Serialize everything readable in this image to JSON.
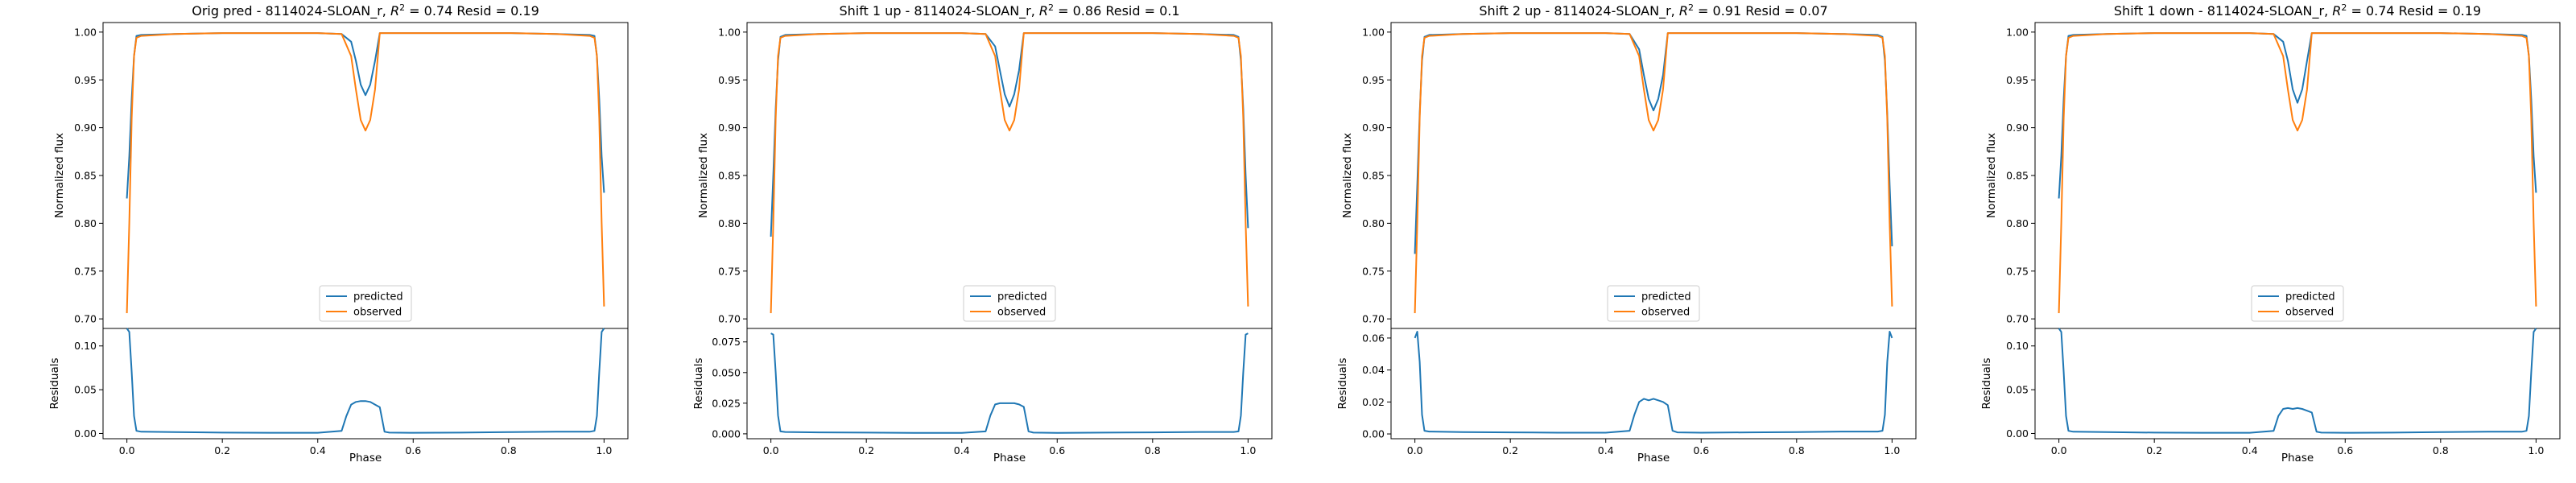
{
  "colors": {
    "predicted": "#1f77b4",
    "observed": "#ff7f0e"
  },
  "chart_data": [
    {
      "type": "line",
      "title_prefix": "Orig pred - 8114024-SLOAN_r, ",
      "r2": "0.74",
      "resid": "0.19",
      "xlabel": "Phase",
      "ylabel_top": "Normalized flux",
      "ylabel_bottom": "Residuals",
      "xlim": [
        -0.05,
        1.05
      ],
      "ylim_top": [
        0.69,
        1.01
      ],
      "ylim_bottom": [
        -0.006,
        0.12
      ],
      "x_ticks": [
        "0.0",
        "0.2",
        "0.4",
        "0.6",
        "0.8",
        "1.0"
      ],
      "y_ticks_top": [
        "0.70",
        "0.75",
        "0.80",
        "0.85",
        "0.90",
        "0.95",
        "1.00"
      ],
      "y_ticks_bottom": [
        "0.00",
        "0.05",
        "0.10"
      ],
      "legend": {
        "location": "lower center",
        "entries": [
          "predicted",
          "observed"
        ]
      },
      "series": [
        {
          "name": "predicted",
          "x": [
            0.0,
            0.005,
            0.01,
            0.015,
            0.02,
            0.03,
            0.1,
            0.2,
            0.3,
            0.4,
            0.45,
            0.47,
            0.48,
            0.49,
            0.5,
            0.51,
            0.52,
            0.53,
            0.55,
            0.6,
            0.7,
            0.8,
            0.9,
            0.97,
            0.98,
            0.985,
            0.99,
            0.995,
            1.0
          ],
          "y": [
            0.826,
            0.87,
            0.93,
            0.975,
            0.996,
            0.997,
            0.998,
            0.999,
            0.999,
            0.999,
            0.998,
            0.99,
            0.97,
            0.945,
            0.934,
            0.945,
            0.97,
            0.999,
            0.999,
            0.999,
            0.999,
            0.999,
            0.998,
            0.997,
            0.996,
            0.975,
            0.93,
            0.87,
            0.832
          ]
        },
        {
          "name": "observed",
          "x": [
            0.0,
            0.005,
            0.01,
            0.015,
            0.02,
            0.03,
            0.1,
            0.2,
            0.3,
            0.4,
            0.45,
            0.47,
            0.48,
            0.49,
            0.5,
            0.51,
            0.52,
            0.53,
            0.55,
            0.6,
            0.7,
            0.8,
            0.9,
            0.97,
            0.98,
            0.985,
            0.99,
            0.995,
            1.0
          ],
          "y": [
            0.706,
            0.8,
            0.91,
            0.975,
            0.994,
            0.996,
            0.998,
            0.999,
            0.999,
            0.999,
            0.998,
            0.975,
            0.94,
            0.908,
            0.897,
            0.908,
            0.94,
            0.999,
            0.999,
            0.999,
            0.999,
            0.999,
            0.998,
            0.996,
            0.994,
            0.975,
            0.91,
            0.8,
            0.713
          ]
        },
        {
          "name": "residuals",
          "x": [
            0.0,
            0.005,
            0.01,
            0.015,
            0.02,
            0.03,
            0.1,
            0.2,
            0.3,
            0.4,
            0.45,
            0.46,
            0.47,
            0.48,
            0.49,
            0.5,
            0.51,
            0.52,
            0.53,
            0.54,
            0.55,
            0.6,
            0.7,
            0.8,
            0.9,
            0.97,
            0.98,
            0.985,
            0.99,
            0.995,
            1.0
          ],
          "y": [
            0.12,
            0.116,
            0.07,
            0.02,
            0.003,
            0.002,
            0.0015,
            0.001,
            0.0008,
            0.0008,
            0.003,
            0.02,
            0.033,
            0.036,
            0.037,
            0.037,
            0.036,
            0.033,
            0.03,
            0.002,
            0.001,
            0.0008,
            0.001,
            0.0015,
            0.002,
            0.002,
            0.003,
            0.02,
            0.07,
            0.116,
            0.12
          ]
        }
      ]
    },
    {
      "type": "line",
      "title_prefix": "Shift 1 up - 8114024-SLOAN_r, ",
      "r2": "0.86",
      "resid": "0.1",
      "xlabel": "Phase",
      "ylabel_top": "Normalized flux",
      "ylabel_bottom": "Residuals",
      "xlim": [
        -0.05,
        1.05
      ],
      "ylim_top": [
        0.69,
        1.01
      ],
      "ylim_bottom": [
        -0.004,
        0.086
      ],
      "x_ticks": [
        "0.0",
        "0.2",
        "0.4",
        "0.6",
        "0.8",
        "1.0"
      ],
      "y_ticks_top": [
        "0.70",
        "0.75",
        "0.80",
        "0.85",
        "0.90",
        "0.95",
        "1.00"
      ],
      "y_ticks_bottom": [
        "0.000",
        "0.025",
        "0.050",
        "0.075"
      ],
      "legend": {
        "location": "lower center",
        "entries": [
          "predicted",
          "observed"
        ]
      },
      "series": [
        {
          "name": "predicted",
          "x": [
            0.0,
            0.005,
            0.01,
            0.015,
            0.02,
            0.03,
            0.1,
            0.2,
            0.3,
            0.4,
            0.45,
            0.47,
            0.48,
            0.49,
            0.5,
            0.51,
            0.52,
            0.53,
            0.55,
            0.6,
            0.7,
            0.8,
            0.9,
            0.97,
            0.98,
            0.985,
            0.99,
            0.995,
            1.0
          ],
          "y": [
            0.786,
            0.85,
            0.92,
            0.97,
            0.995,
            0.997,
            0.998,
            0.999,
            0.999,
            0.999,
            0.998,
            0.985,
            0.96,
            0.935,
            0.922,
            0.935,
            0.96,
            0.999,
            0.999,
            0.999,
            0.999,
            0.999,
            0.998,
            0.997,
            0.995,
            0.97,
            0.92,
            0.85,
            0.795
          ]
        },
        {
          "name": "observed",
          "x": [
            0.0,
            0.005,
            0.01,
            0.015,
            0.02,
            0.03,
            0.1,
            0.2,
            0.3,
            0.4,
            0.45,
            0.47,
            0.48,
            0.49,
            0.5,
            0.51,
            0.52,
            0.53,
            0.55,
            0.6,
            0.7,
            0.8,
            0.9,
            0.97,
            0.98,
            0.985,
            0.99,
            0.995,
            1.0
          ],
          "y": [
            0.706,
            0.8,
            0.91,
            0.975,
            0.994,
            0.996,
            0.998,
            0.999,
            0.999,
            0.999,
            0.998,
            0.975,
            0.94,
            0.908,
            0.897,
            0.908,
            0.94,
            0.999,
            0.999,
            0.999,
            0.999,
            0.999,
            0.998,
            0.996,
            0.994,
            0.975,
            0.91,
            0.8,
            0.713
          ]
        },
        {
          "name": "residuals",
          "x": [
            0.0,
            0.005,
            0.01,
            0.015,
            0.02,
            0.03,
            0.1,
            0.2,
            0.3,
            0.4,
            0.45,
            0.46,
            0.47,
            0.48,
            0.49,
            0.5,
            0.51,
            0.52,
            0.53,
            0.54,
            0.55,
            0.6,
            0.7,
            0.8,
            0.9,
            0.97,
            0.98,
            0.985,
            0.99,
            0.995,
            1.0
          ],
          "y": [
            0.082,
            0.081,
            0.05,
            0.015,
            0.002,
            0.0015,
            0.0012,
            0.001,
            0.0008,
            0.0008,
            0.002,
            0.015,
            0.024,
            0.025,
            0.025,
            0.025,
            0.025,
            0.024,
            0.022,
            0.002,
            0.001,
            0.0008,
            0.001,
            0.0012,
            0.0015,
            0.0015,
            0.002,
            0.015,
            0.05,
            0.081,
            0.082
          ]
        }
      ]
    },
    {
      "type": "line",
      "title_prefix": "Shift 2 up - 8114024-SLOAN_r, ",
      "r2": "0.91",
      "resid": "0.07",
      "xlabel": "Phase",
      "ylabel_top": "Normalized flux",
      "ylabel_bottom": "Residuals",
      "xlim": [
        -0.05,
        1.05
      ],
      "ylim_top": [
        0.69,
        1.01
      ],
      "ylim_bottom": [
        -0.003,
        0.066
      ],
      "x_ticks": [
        "0.0",
        "0.2",
        "0.4",
        "0.6",
        "0.8",
        "1.0"
      ],
      "y_ticks_top": [
        "0.70",
        "0.75",
        "0.80",
        "0.85",
        "0.90",
        "0.95",
        "1.00"
      ],
      "y_ticks_bottom": [
        "0.00",
        "0.02",
        "0.04",
        "0.06"
      ],
      "legend": {
        "location": "lower center",
        "entries": [
          "predicted",
          "observed"
        ]
      },
      "series": [
        {
          "name": "predicted",
          "x": [
            0.0,
            0.005,
            0.01,
            0.015,
            0.02,
            0.03,
            0.1,
            0.2,
            0.3,
            0.4,
            0.45,
            0.47,
            0.48,
            0.49,
            0.5,
            0.51,
            0.52,
            0.53,
            0.55,
            0.6,
            0.7,
            0.8,
            0.9,
            0.97,
            0.98,
            0.985,
            0.99,
            0.995,
            1.0
          ],
          "y": [
            0.768,
            0.84,
            0.915,
            0.97,
            0.995,
            0.997,
            0.998,
            0.999,
            0.999,
            0.999,
            0.998,
            0.982,
            0.955,
            0.93,
            0.918,
            0.93,
            0.955,
            0.999,
            0.999,
            0.999,
            0.999,
            0.999,
            0.998,
            0.997,
            0.995,
            0.97,
            0.915,
            0.84,
            0.776
          ]
        },
        {
          "name": "observed",
          "x": [
            0.0,
            0.005,
            0.01,
            0.015,
            0.02,
            0.03,
            0.1,
            0.2,
            0.3,
            0.4,
            0.45,
            0.47,
            0.48,
            0.49,
            0.5,
            0.51,
            0.52,
            0.53,
            0.55,
            0.6,
            0.7,
            0.8,
            0.9,
            0.97,
            0.98,
            0.985,
            0.99,
            0.995,
            1.0
          ],
          "y": [
            0.706,
            0.8,
            0.91,
            0.975,
            0.994,
            0.996,
            0.998,
            0.999,
            0.999,
            0.999,
            0.998,
            0.975,
            0.94,
            0.908,
            0.897,
            0.908,
            0.94,
            0.999,
            0.999,
            0.999,
            0.999,
            0.999,
            0.998,
            0.996,
            0.994,
            0.975,
            0.91,
            0.8,
            0.713
          ]
        },
        {
          "name": "residuals",
          "x": [
            0.0,
            0.005,
            0.01,
            0.015,
            0.02,
            0.03,
            0.1,
            0.2,
            0.3,
            0.4,
            0.45,
            0.46,
            0.47,
            0.48,
            0.49,
            0.5,
            0.51,
            0.52,
            0.53,
            0.54,
            0.55,
            0.6,
            0.7,
            0.8,
            0.9,
            0.97,
            0.98,
            0.985,
            0.99,
            0.995,
            1.0
          ],
          "y": [
            0.06,
            0.064,
            0.045,
            0.012,
            0.002,
            0.0015,
            0.0012,
            0.001,
            0.0008,
            0.0008,
            0.002,
            0.012,
            0.02,
            0.022,
            0.021,
            0.022,
            0.021,
            0.02,
            0.018,
            0.002,
            0.001,
            0.0008,
            0.001,
            0.0012,
            0.0015,
            0.0015,
            0.002,
            0.012,
            0.045,
            0.064,
            0.06
          ]
        }
      ]
    },
    {
      "type": "line",
      "title_prefix": "Shift 1 down - 8114024-SLOAN_r, ",
      "r2": "0.74",
      "resid": "0.19",
      "xlabel": "Phase",
      "ylabel_top": "Normalized flux",
      "ylabel_bottom": "Residuals",
      "xlim": [
        -0.05,
        1.05
      ],
      "ylim_top": [
        0.69,
        1.01
      ],
      "ylim_bottom": [
        -0.006,
        0.12
      ],
      "x_ticks": [
        "0.0",
        "0.2",
        "0.4",
        "0.6",
        "0.8",
        "1.0"
      ],
      "y_ticks_top": [
        "0.70",
        "0.75",
        "0.80",
        "0.85",
        "0.90",
        "0.95",
        "1.00"
      ],
      "y_ticks_bottom": [
        "0.00",
        "0.05",
        "0.10"
      ],
      "legend": {
        "location": "lower center",
        "entries": [
          "predicted",
          "observed"
        ]
      },
      "series": [
        {
          "name": "predicted",
          "x": [
            0.0,
            0.005,
            0.01,
            0.015,
            0.02,
            0.03,
            0.1,
            0.2,
            0.3,
            0.4,
            0.45,
            0.47,
            0.48,
            0.49,
            0.5,
            0.51,
            0.52,
            0.53,
            0.55,
            0.6,
            0.7,
            0.8,
            0.9,
            0.97,
            0.98,
            0.985,
            0.99,
            0.995,
            1.0
          ],
          "y": [
            0.826,
            0.87,
            0.93,
            0.975,
            0.996,
            0.997,
            0.998,
            0.999,
            0.999,
            0.999,
            0.998,
            0.99,
            0.97,
            0.94,
            0.926,
            0.94,
            0.97,
            0.999,
            0.999,
            0.999,
            0.999,
            0.999,
            0.998,
            0.997,
            0.996,
            0.975,
            0.93,
            0.87,
            0.832
          ]
        },
        {
          "name": "observed",
          "x": [
            0.0,
            0.005,
            0.01,
            0.015,
            0.02,
            0.03,
            0.1,
            0.2,
            0.3,
            0.4,
            0.45,
            0.47,
            0.48,
            0.49,
            0.5,
            0.51,
            0.52,
            0.53,
            0.55,
            0.6,
            0.7,
            0.8,
            0.9,
            0.97,
            0.98,
            0.985,
            0.99,
            0.995,
            1.0
          ],
          "y": [
            0.706,
            0.8,
            0.91,
            0.975,
            0.994,
            0.996,
            0.998,
            0.999,
            0.999,
            0.999,
            0.998,
            0.975,
            0.94,
            0.908,
            0.897,
            0.908,
            0.94,
            0.999,
            0.999,
            0.999,
            0.999,
            0.999,
            0.998,
            0.996,
            0.994,
            0.975,
            0.91,
            0.8,
            0.713
          ]
        },
        {
          "name": "residuals",
          "x": [
            0.0,
            0.005,
            0.01,
            0.015,
            0.02,
            0.03,
            0.1,
            0.2,
            0.3,
            0.4,
            0.45,
            0.46,
            0.47,
            0.48,
            0.49,
            0.5,
            0.51,
            0.52,
            0.53,
            0.54,
            0.55,
            0.6,
            0.7,
            0.8,
            0.9,
            0.97,
            0.98,
            0.985,
            0.99,
            0.995,
            1.0
          ],
          "y": [
            0.12,
            0.116,
            0.07,
            0.02,
            0.003,
            0.002,
            0.0015,
            0.001,
            0.0008,
            0.0008,
            0.003,
            0.02,
            0.028,
            0.029,
            0.028,
            0.029,
            0.028,
            0.026,
            0.024,
            0.002,
            0.001,
            0.0008,
            0.001,
            0.0015,
            0.002,
            0.002,
            0.003,
            0.02,
            0.07,
            0.116,
            0.12
          ]
        }
      ]
    }
  ]
}
